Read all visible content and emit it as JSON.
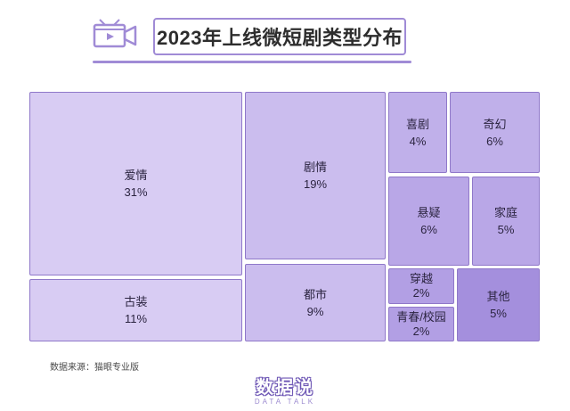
{
  "title": "2023年上线微短剧类型分布",
  "icon": "video-camera-icon",
  "source": "数据来源：猫眼专业版",
  "logo": {
    "main": "数据说",
    "sub": "DATA TALK"
  },
  "colors": {
    "accent": "#a08bd6",
    "border": "#8f78c9",
    "text": "#2b2440"
  },
  "chart_data": {
    "type": "treemap",
    "title": "2023年上线微短剧类型分布",
    "unit": "%",
    "items": [
      {
        "name": "爱情",
        "value": 31,
        "label": "31%",
        "color": "#d8ccf3"
      },
      {
        "name": "古装",
        "value": 11,
        "label": "11%",
        "color": "#d8ccf3"
      },
      {
        "name": "剧情",
        "value": 19,
        "label": "19%",
        "color": "#cbbdee"
      },
      {
        "name": "都市",
        "value": 9,
        "label": "9%",
        "color": "#cbbdee"
      },
      {
        "name": "喜剧",
        "value": 4,
        "label": "4%",
        "color": "#c0b0ea"
      },
      {
        "name": "奇幻",
        "value": 6,
        "label": "6%",
        "color": "#c0b0ea"
      },
      {
        "name": "悬疑",
        "value": 6,
        "label": "6%",
        "color": "#b9a7e7"
      },
      {
        "name": "家庭",
        "value": 5,
        "label": "5%",
        "color": "#b9a7e7"
      },
      {
        "name": "穿越",
        "value": 2,
        "label": "2%",
        "color": "#b29fe4"
      },
      {
        "name": "青春/校园",
        "value": 2,
        "label": "2%",
        "color": "#b29fe4"
      },
      {
        "name": "其他",
        "value": 5,
        "label": "5%",
        "color": "#a48fdd"
      }
    ]
  }
}
